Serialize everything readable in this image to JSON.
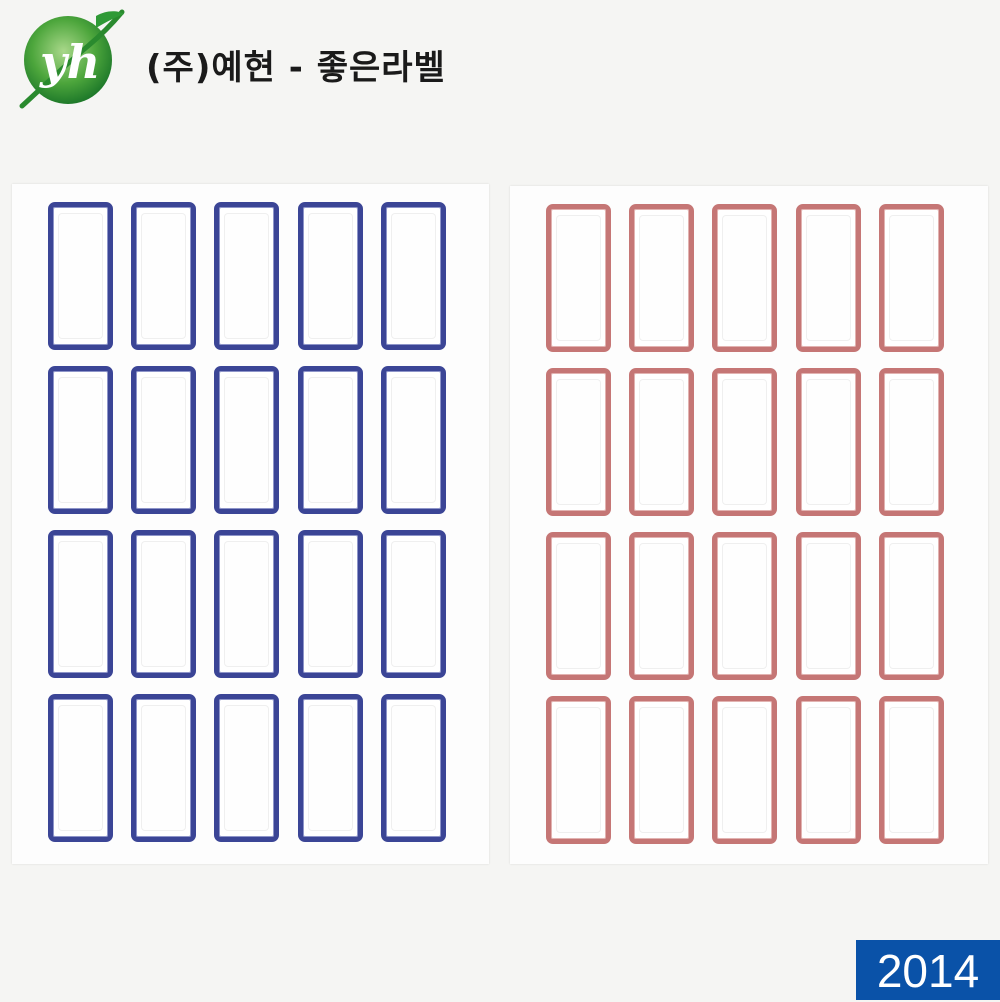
{
  "brand": {
    "logo_icon": "yh-leaf-logo-icon",
    "title": "(주)예현 - 좋은라벨",
    "colors": {
      "logo_green": "#1f8a2e",
      "logo_light": "#7fc35a"
    }
  },
  "sheets": [
    {
      "name": "blue-label-sheet",
      "border_color": "#3b4596",
      "rows": 4,
      "columns": 5
    },
    {
      "name": "red-label-sheet",
      "border_color": "#c57675",
      "rows": 4,
      "columns": 5
    }
  ],
  "badge": {
    "year": "2014",
    "background": "#0a52a8"
  }
}
